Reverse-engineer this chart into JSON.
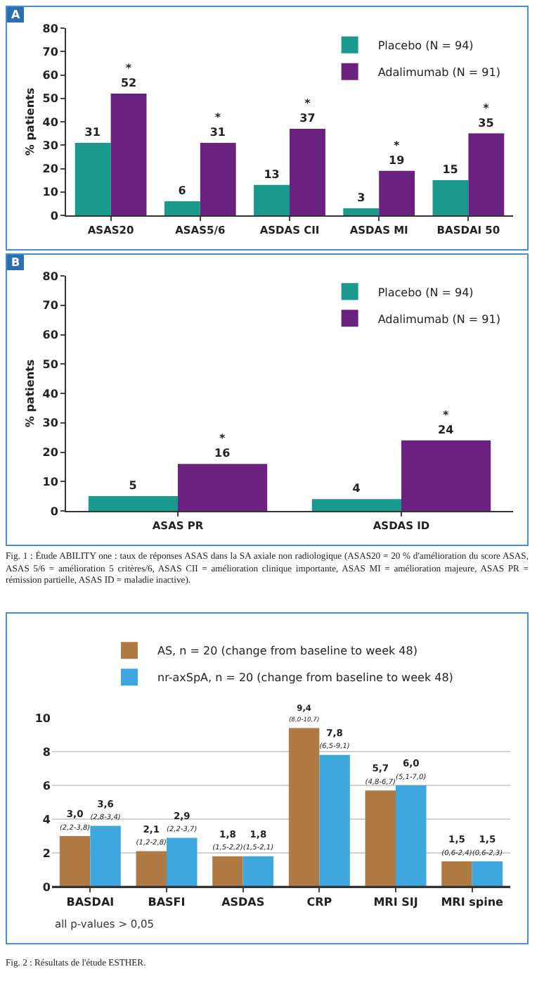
{
  "chart_data": [
    {
      "type": "bar",
      "title": "A",
      "ylabel": "% patients",
      "categories": [
        "ASAS20",
        "ASAS5/6",
        "ASDAS CII",
        "ASDAS MI",
        "BASDAI 50"
      ],
      "series": [
        {
          "name": "Placebo (N = 94)",
          "color": "#1a9a8c",
          "values": [
            31,
            6,
            13,
            3,
            15
          ],
          "value_labels": [
            "31",
            "6",
            "13",
            "3",
            "15"
          ]
        },
        {
          "name": "Adalimumab (N = 91)",
          "color": "#6b2180",
          "values": [
            52,
            31,
            37,
            19,
            35
          ],
          "value_labels": [
            "*\n52",
            "*\n31",
            "*\n37",
            "*\n19",
            "*\n35"
          ]
        }
      ],
      "ylim": [
        0,
        80
      ],
      "yticks": [
        0,
        10,
        20,
        30,
        40,
        50,
        60,
        70,
        80
      ],
      "grid": false,
      "legend": "top right"
    },
    {
      "type": "bar",
      "title": "B",
      "ylabel": "% patients",
      "categories": [
        "ASAS PR",
        "ASDAS ID"
      ],
      "series": [
        {
          "name": "Placebo (N = 94)",
          "color": "#1a9a8c",
          "values": [
            5,
            4
          ],
          "value_labels": [
            "5",
            "4"
          ]
        },
        {
          "name": "Adalimumab (N = 91)",
          "color": "#6b2180",
          "values": [
            16,
            24
          ],
          "value_labels": [
            "*\n16",
            "*\n24"
          ]
        }
      ],
      "ylim": [
        0,
        80
      ],
      "yticks": [
        0,
        10,
        20,
        30,
        40,
        50,
        60,
        70,
        80
      ],
      "grid": false,
      "legend": "top right",
      "annotations": [
        "Fig. 1 : Étude ABILITY one : taux de réponses ASAS dans la SA axiale non radiologique (ASAS20 = 20 % d'amélioration du score ASAS, ASAS 5/6 = amélioration 5 critères/6, ASAS CII = amélioration clinique importante, ASAS MI = amélioration majeure, ASAS PR = rémission partielle, ASAS ID = maladie inactive)."
      ]
    },
    {
      "type": "bar",
      "categories": [
        "BASDAI",
        "BASFI",
        "ASDAS",
        "CRP",
        "MRI SIJ",
        "MRI spine"
      ],
      "series": [
        {
          "name": "AS, n = 20 (change from baseline to week 48)",
          "color": "#b07a45",
          "values": [
            3.0,
            2.1,
            1.8,
            9.4,
            5.7,
            1.5
          ],
          "value_labels": [
            "3,0\n(2,2-3,8)",
            "2,1\n(1,2-2,8)",
            "1,8\n(1,5-2,2)",
            "9,4\n(8,0-10,7)",
            "5,7\n(4,8-6,7)",
            "1,5\n(0,6-2,4)"
          ]
        },
        {
          "name": "nr-axSpA, n = 20 (change from baseline to week 48)",
          "color": "#3ea8de",
          "values": [
            3.6,
            2.9,
            1.8,
            7.8,
            6.0,
            1.5
          ],
          "value_labels": [
            "3,6\n(2,8-3,4)",
            "2,9\n(2,2-3,7)",
            "1,8\n(1,5-2,1)",
            "7,8\n(6,5-9,1)",
            "6,0\n(5,1-7,0)",
            "1,5\n(0,6-2,3)"
          ]
        }
      ],
      "ylim": [
        0,
        10
      ],
      "yticks": [
        0,
        2,
        4,
        6,
        8,
        10
      ],
      "grid": "y",
      "legend": "top",
      "annotations": [
        "all p-values > 0,05",
        "Fig. 2 : Résultats de l'étude ESTHER."
      ]
    }
  ]
}
